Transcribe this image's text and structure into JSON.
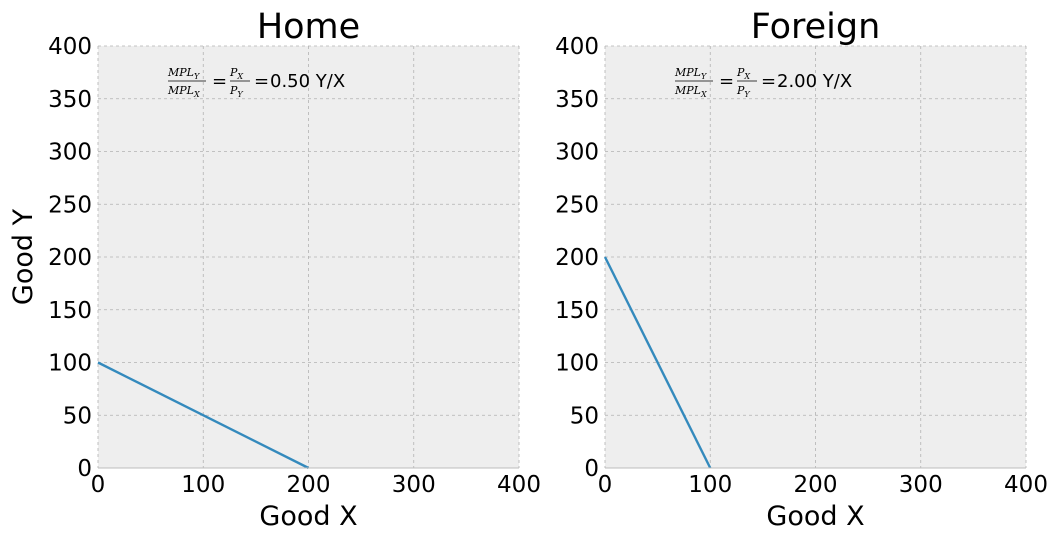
{
  "chart_data": [
    {
      "type": "line",
      "title": "Home",
      "xlabel": "Good X",
      "ylabel": "Good Y",
      "xlim": [
        0,
        400
      ],
      "ylim": [
        0,
        400
      ],
      "xticks": [
        "0",
        "100",
        "200",
        "300",
        "400"
      ],
      "yticks": [
        "0",
        "50",
        "100",
        "150",
        "200",
        "250",
        "300",
        "350",
        "400"
      ],
      "grid": true,
      "series": [
        {
          "x": [
            0,
            200
          ],
          "y": [
            100,
            0
          ],
          "color": "#348abd"
        }
      ],
      "annotation": {
        "num_left": "MPL",
        "num_left_sub": "Y",
        "den_left": "MPL",
        "den_left_sub": "X",
        "num_right": "P",
        "num_right_sub": "X",
        "den_right": "P",
        "den_right_sub": "Y",
        "value": "0.50 Y/X"
      }
    },
    {
      "type": "line",
      "title": "Foreign",
      "xlabel": "Good X",
      "ylabel": "",
      "xlim": [
        0,
        400
      ],
      "ylim": [
        0,
        400
      ],
      "xticks": [
        "0",
        "100",
        "200",
        "300",
        "400"
      ],
      "yticks": [
        "0",
        "50",
        "100",
        "150",
        "200",
        "250",
        "300",
        "350",
        "400"
      ],
      "grid": true,
      "series": [
        {
          "x": [
            0,
            100
          ],
          "y": [
            200,
            0
          ],
          "color": "#348abd"
        }
      ],
      "annotation": {
        "num_left": "MPL",
        "num_left_sub": "Y",
        "den_left": "MPL",
        "den_left_sub": "X",
        "num_right": "P",
        "num_right_sub": "X",
        "den_right": "P",
        "den_right_sub": "Y",
        "value": "2.00 Y/X"
      }
    }
  ],
  "colors": {
    "plot_background": "#eeeeee",
    "line": "#348abd"
  }
}
